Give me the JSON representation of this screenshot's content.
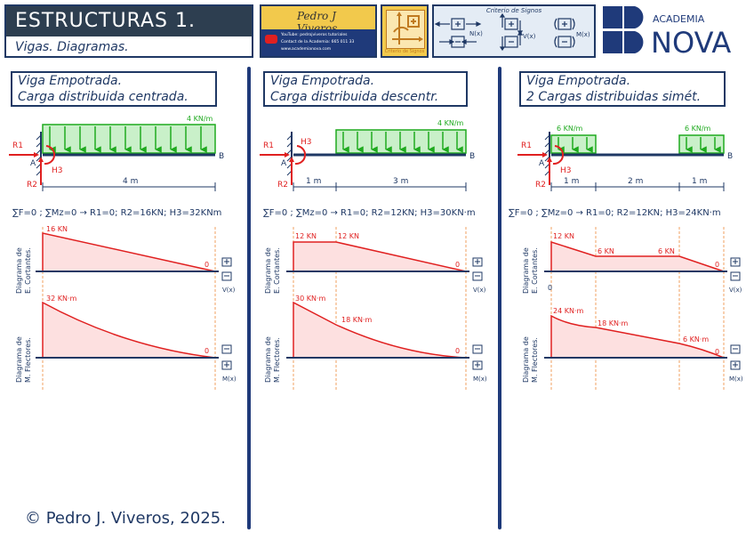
{
  "header": {
    "title": "ESTRUCTURAS 1.",
    "subtitle": "Vigas. Diagramas.",
    "promo": {
      "signature": "Pedro J Viveros",
      "lines": [
        "YouTube: pedrojviveros tutoriales",
        "Contact de la Academia: 665 011 33",
        "www.academianova.com"
      ]
    },
    "cross_label": "Criterio de Signos",
    "signs": {
      "caption": "Criterio de Signos",
      "n_label": "N(x)",
      "v_label": "V(x)",
      "m_label": "M(x)"
    },
    "logo": {
      "small": "ACADEMIA",
      "big": "NOVA"
    }
  },
  "columns": [
    {
      "title_line1": "Viga Empotrada.",
      "title_line2": "Carga distribuida centrada.",
      "load_label": "4 KN/m",
      "dims": [
        "4 m"
      ],
      "equation": "∑F=0 ; ∑Mz=0 → R1=0; R2=16KN; H3=32KNm",
      "shear_labels": [
        "16 KN",
        "0"
      ],
      "moment_labels": [
        "32 KN·m",
        "0"
      ]
    },
    {
      "title_line1": "Viga Empotrada.",
      "title_line2": "Carga distribuida descentr.",
      "load_label": "4 KN/m",
      "dims": [
        "1 m",
        "3 m"
      ],
      "equation": "∑F=0 ; ∑Mz=0 → R1=0; R2=12KN; H3=30KN·m",
      "shear_labels": [
        "12 KN",
        "12 KN",
        "0"
      ],
      "moment_labels": [
        "30 KN·m",
        "18 KN·m",
        "0"
      ]
    },
    {
      "title_line1": "Viga Empotrada.",
      "title_line2": "2 Cargas distribuidas simét.",
      "load_labels": [
        "6 KN/m",
        "6 KN/m"
      ],
      "dims": [
        "1 m",
        "2 m",
        "1 m"
      ],
      "equation": "∑F=0 ; ∑Mz=0 → R1=0; R2=12KN; H3=24KN·m",
      "shear_labels": [
        "12 KN",
        "6 KN",
        "6 KN",
        "0",
        "0"
      ],
      "moment_labels": [
        "24 KN·m",
        "18 KN·m",
        "6 KN·m",
        "0"
      ]
    }
  ],
  "common": {
    "shear_axis_label": [
      "Diagrama de",
      "E. Cortantes."
    ],
    "moment_axis_label": [
      "Diagrama de",
      "M. Flectores."
    ],
    "v_label": "V(x)",
    "m_label": "M(x)",
    "point_a": "A",
    "point_b": "B",
    "r1": "R1",
    "r2": "R2",
    "h3": "H3"
  },
  "footer": "© Pedro J. Viveros,  2025.",
  "colors": {
    "navy": "#1f3864",
    "red": "#e02020",
    "green": "#1faa1f",
    "fill_red": "#fde0e0",
    "fill_green": "#c9f0c9"
  }
}
